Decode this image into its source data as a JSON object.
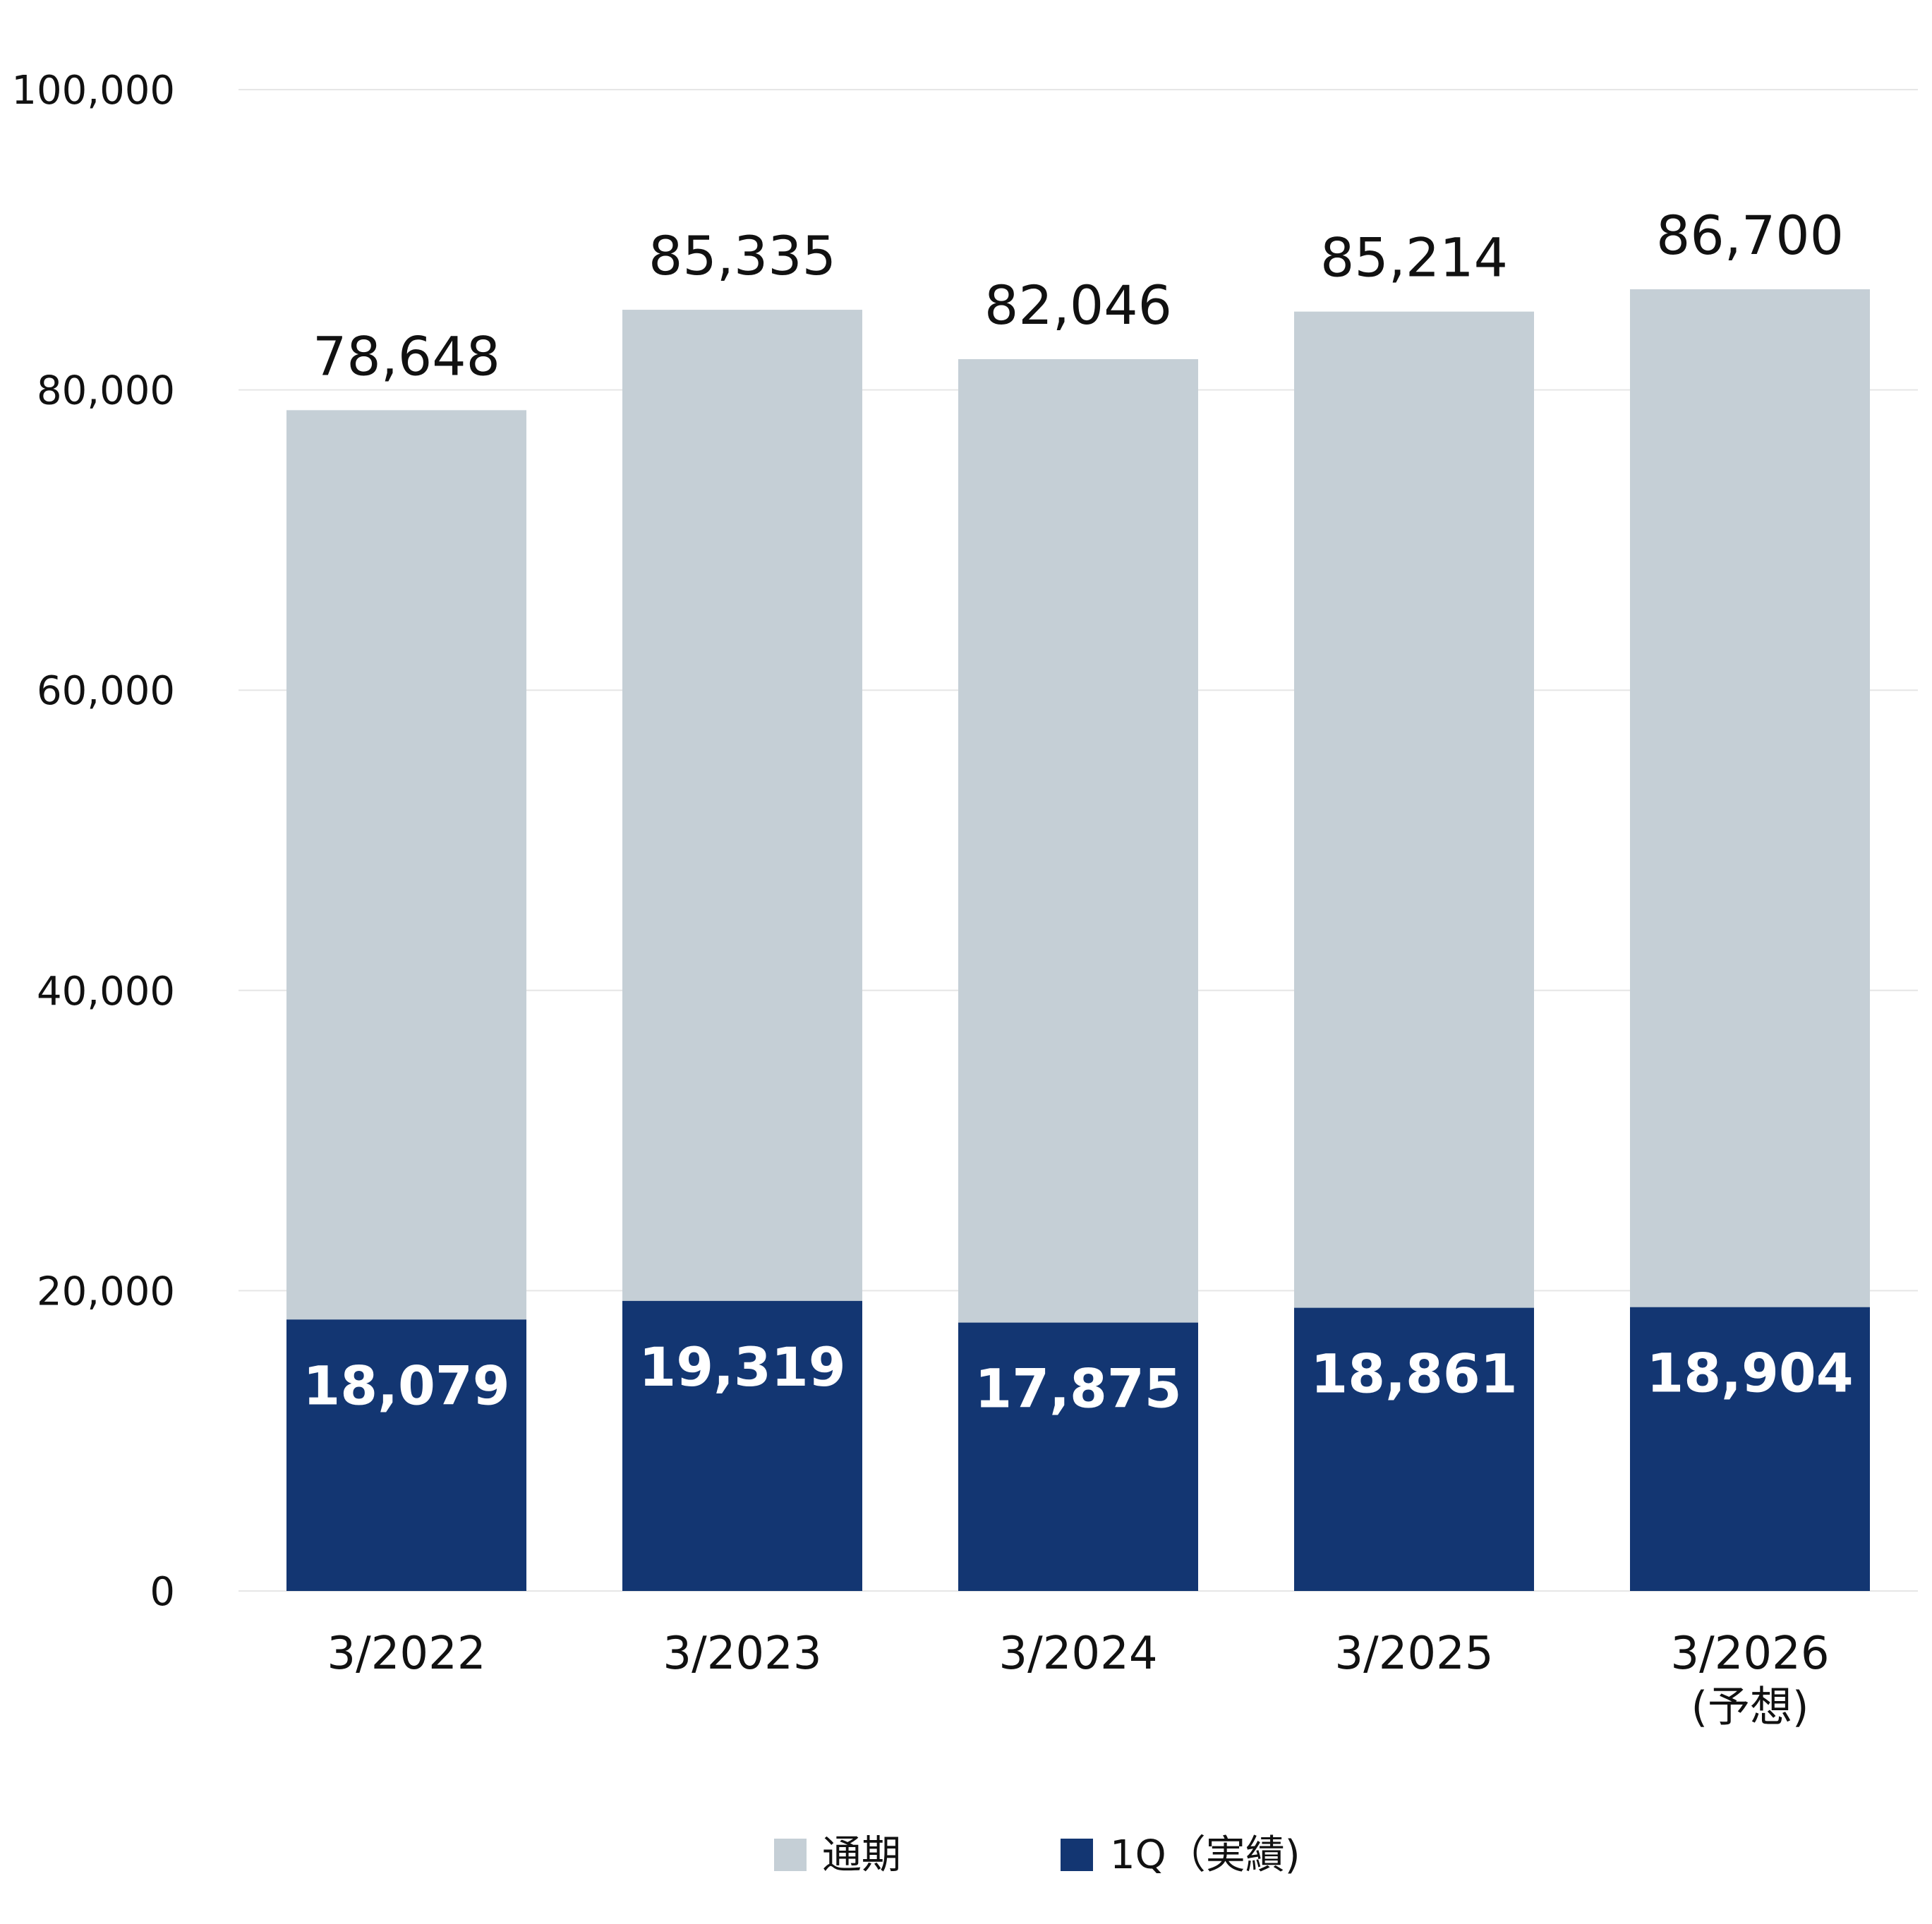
{
  "chart_data": {
    "type": "bar",
    "stacked": false,
    "categories": [
      "3/2022",
      "3/2023",
      "3/2024",
      "3/2025",
      "3/2026"
    ],
    "category_sublabels": [
      "",
      "",
      "",
      "",
      "(予想)"
    ],
    "series": [
      {
        "name": "通期",
        "values": [
          78648,
          85335,
          82046,
          85214,
          86700
        ],
        "value_labels": [
          "78,648",
          "85,335",
          "82,046",
          "85,214",
          "86,700"
        ]
      },
      {
        "name": "1Q（実績)",
        "values": [
          18079,
          19319,
          17875,
          18861,
          18904
        ],
        "value_labels": [
          "18,079",
          "19,319",
          "17,875",
          "18,861",
          "18,904"
        ]
      }
    ],
    "ylim": [
      0,
      100000
    ],
    "yticks": [
      0,
      20000,
      40000,
      60000,
      80000,
      100000
    ],
    "ytick_labels": [
      "0",
      "20,000",
      "40,000",
      "60,000",
      "80,000",
      "100,000"
    ],
    "grid": true,
    "legend_position": "bottom-center",
    "colors": {
      "full_year": "#c5cfd6",
      "q1": "#133672",
      "grid": "#e6e6e6",
      "text": "#111111",
      "q1_label": "#ffffff"
    }
  }
}
